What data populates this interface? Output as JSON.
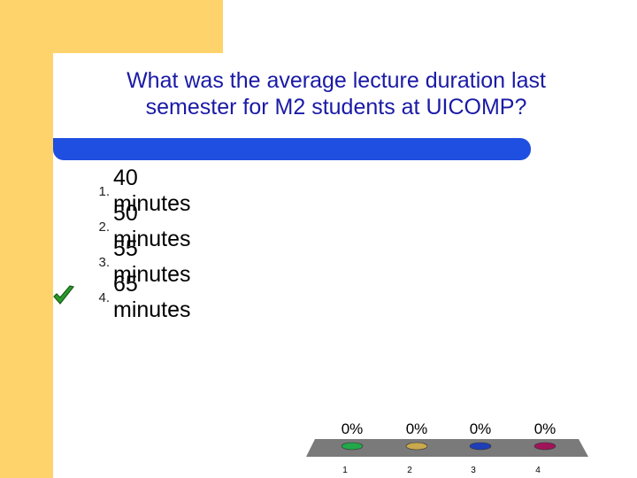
{
  "slide": {
    "title_line1": "What was the average lecture duration last",
    "title_line2": "semester for M2 students at UICOMP?"
  },
  "answers": [
    {
      "number": "1.",
      "text": "40 minutes",
      "correct": false
    },
    {
      "number": "2.",
      "text": "50 minutes",
      "correct": false
    },
    {
      "number": "3.",
      "text": "55 minutes",
      "correct": false
    },
    {
      "number": "4.",
      "text": "65 minutes",
      "correct": true
    }
  ],
  "icons": {
    "correct_marker": "checkmark-icon"
  },
  "colors": {
    "accent_yellow": "#FFD36B",
    "divider_blue": "#1F4FE0",
    "title_blue": "#1A1AA6",
    "chart_base": "#7A7A7A"
  },
  "chart_data": {
    "type": "bar",
    "categories": [
      "1",
      "2",
      "3",
      "4"
    ],
    "values": [
      0,
      0,
      0,
      0
    ],
    "value_labels": [
      "0%",
      "0%",
      "0%",
      "0%"
    ],
    "series_colors": [
      "#22A84A",
      "#C9A94E",
      "#1F3FB8",
      "#A0145A"
    ],
    "ylim": [
      0,
      100
    ],
    "title": "",
    "xlabel": "",
    "ylabel": ""
  }
}
